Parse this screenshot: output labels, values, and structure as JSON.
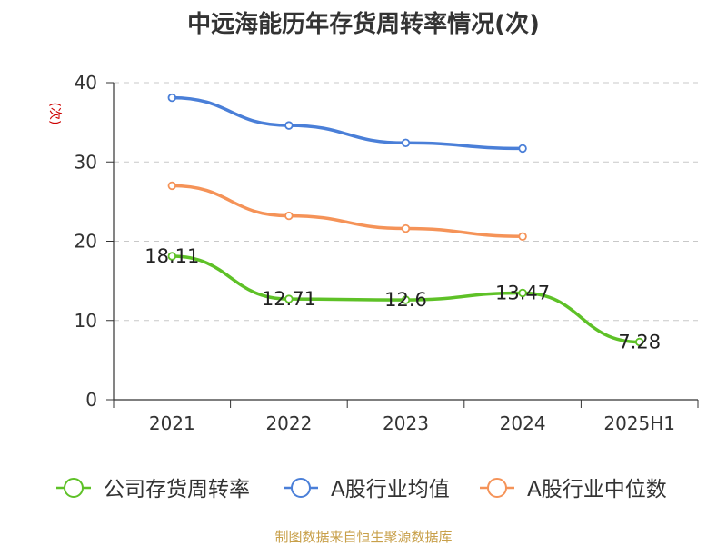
{
  "chart_data": {
    "type": "line",
    "title": "中远海能历年存货周转率情况(次)",
    "ylabel": "(次)",
    "categories": [
      "2021",
      "2022",
      "2023",
      "2024",
      "2025H1"
    ],
    "ylim": [
      0,
      40
    ],
    "yticks": [
      "0",
      "10",
      "20",
      "30",
      "40"
    ],
    "grid": true,
    "legend_position": "bottom",
    "series": [
      {
        "name": "公司存货周转率",
        "color": "#5ec127",
        "values": [
          18.11,
          12.71,
          12.6,
          13.47,
          7.28
        ],
        "labels": [
          "18.11",
          "12.71",
          "12.6",
          "13.47",
          "7.28"
        ]
      },
      {
        "name": "A股行业均值",
        "color": "#4a7fd8",
        "values": [
          38.1,
          34.6,
          32.4,
          31.7,
          null
        ]
      },
      {
        "name": "A股行业中位数",
        "color": "#f59358",
        "values": [
          27.0,
          23.2,
          21.6,
          20.6,
          null
        ]
      }
    ]
  },
  "footer": {
    "source": "制图数据来自恒生聚源数据库"
  }
}
